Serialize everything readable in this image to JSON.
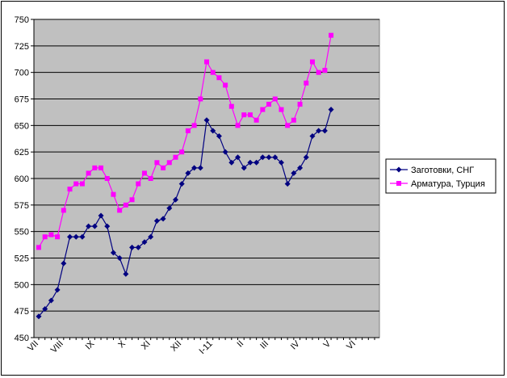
{
  "chart_data": {
    "type": "line",
    "title": "",
    "xlabel": "",
    "ylabel": "",
    "ylim": [
      450,
      750
    ],
    "yticks": [
      450,
      475,
      500,
      525,
      550,
      575,
      600,
      625,
      650,
      675,
      700,
      725,
      750
    ],
    "ytick_labels": [
      "450",
      "475",
      "500",
      "525",
      "550",
      "575",
      "600",
      "625",
      "650",
      "675",
      "700",
      "725",
      "750"
    ],
    "x_count": 55,
    "x_labels": [
      {
        "label": "VII",
        "index": 0
      },
      {
        "label": "VIII",
        "index": 4
      },
      {
        "label": "IX",
        "index": 9
      },
      {
        "label": "X",
        "index": 14
      },
      {
        "label": "XI",
        "index": 18
      },
      {
        "label": "XII",
        "index": 23
      },
      {
        "label": "I-11",
        "index": 28
      },
      {
        "label": "II",
        "index": 33
      },
      {
        "label": "III",
        "index": 37
      },
      {
        "label": "IV",
        "index": 42
      },
      {
        "label": "V",
        "index": 47
      },
      {
        "label": "VI",
        "index": 51
      }
    ],
    "grid": true,
    "plot_background": "#c0c0c0",
    "legend_position": "right",
    "series": [
      {
        "name": "Заготовки, СНГ",
        "color": "#000080",
        "marker": "diamond",
        "values": [
          470,
          477,
          485,
          495,
          520,
          545,
          545,
          545,
          555,
          555,
          565,
          555,
          530,
          525,
          510,
          535,
          535,
          540,
          545,
          560,
          562,
          572,
          580,
          595,
          605,
          610,
          610,
          655,
          645,
          640,
          625,
          615,
          620,
          610,
          615,
          615,
          620,
          620,
          620,
          615,
          595,
          605,
          610,
          620,
          640,
          645,
          645,
          665
        ]
      },
      {
        "name": "Арматура, Турция",
        "color": "#ff00ff",
        "marker": "square",
        "values": [
          535,
          545,
          547,
          545,
          570,
          590,
          595,
          595,
          605,
          610,
          610,
          600,
          585,
          570,
          575,
          580,
          595,
          605,
          600,
          615,
          610,
          615,
          620,
          625,
          645,
          650,
          675,
          710,
          700,
          695,
          688,
          668,
          650,
          660,
          660,
          655,
          665,
          670,
          675,
          665,
          650,
          655,
          670,
          690,
          710,
          700,
          702,
          735
        ]
      }
    ]
  }
}
